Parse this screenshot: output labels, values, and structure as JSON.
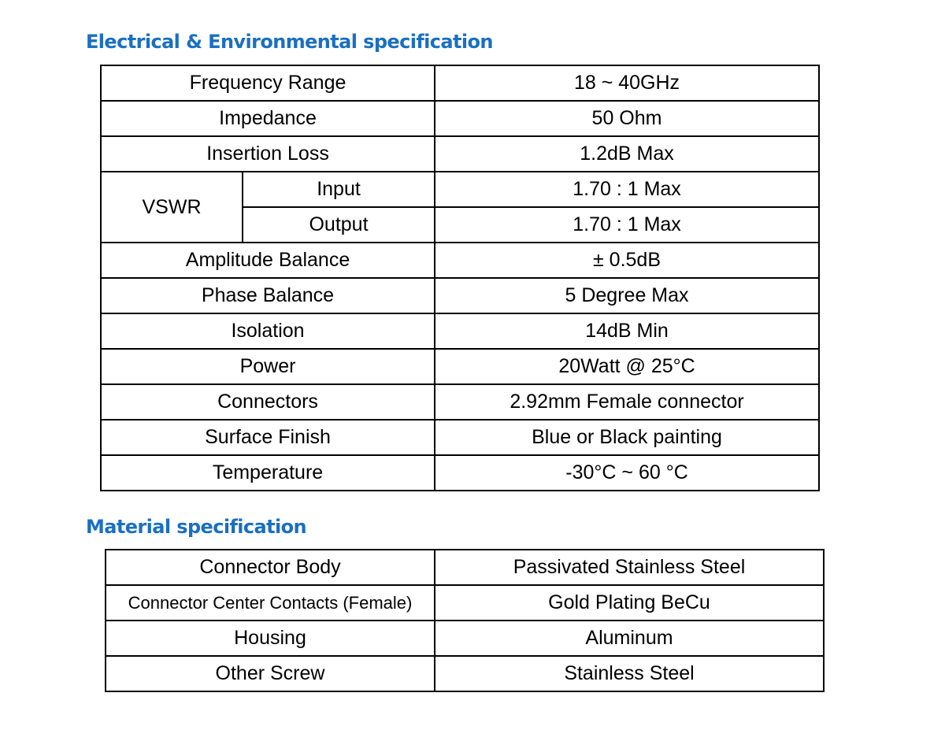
{
  "electrical": {
    "title": "Electrical & Environmental specification",
    "rows": [
      {
        "label": "Frequency Range",
        "value": "18 ~ 40GHz"
      },
      {
        "label": "Impedance",
        "value": "50 Ohm"
      },
      {
        "label": "Insertion Loss",
        "value": "1.2dB Max"
      }
    ],
    "vswr": {
      "label": "VSWR",
      "input_label": "Input",
      "input_value": "1.70 : 1 Max",
      "output_label": "Output",
      "output_value": "1.70 : 1 Max"
    },
    "rows2": [
      {
        "label": "Amplitude Balance",
        "value": "± 0.5dB"
      },
      {
        "label": "Phase Balance",
        "value": "5 Degree Max"
      },
      {
        "label": "Isolation",
        "value": "14dB Min"
      },
      {
        "label": "Power",
        "value": "20Watt @ 25°C"
      },
      {
        "label": "Connectors",
        "value": "2.92mm Female connector"
      },
      {
        "label": "Surface Finish",
        "value": "Blue or Black painting"
      },
      {
        "label": "Temperature",
        "value": "-30°C ~ 60 °C"
      }
    ]
  },
  "material": {
    "title": "Material specification",
    "rows": [
      {
        "label": "Connector Body",
        "value": "Passivated Stainless Steel"
      },
      {
        "label": "Connector Center Contacts (Female)",
        "value": "Gold Plating BeCu"
      },
      {
        "label": "Housing",
        "value": "Aluminum"
      },
      {
        "label": "Other Screw",
        "value": "Stainless Steel"
      }
    ]
  },
  "colors": {
    "heading": "#1a6fc2",
    "border": "#000000"
  }
}
